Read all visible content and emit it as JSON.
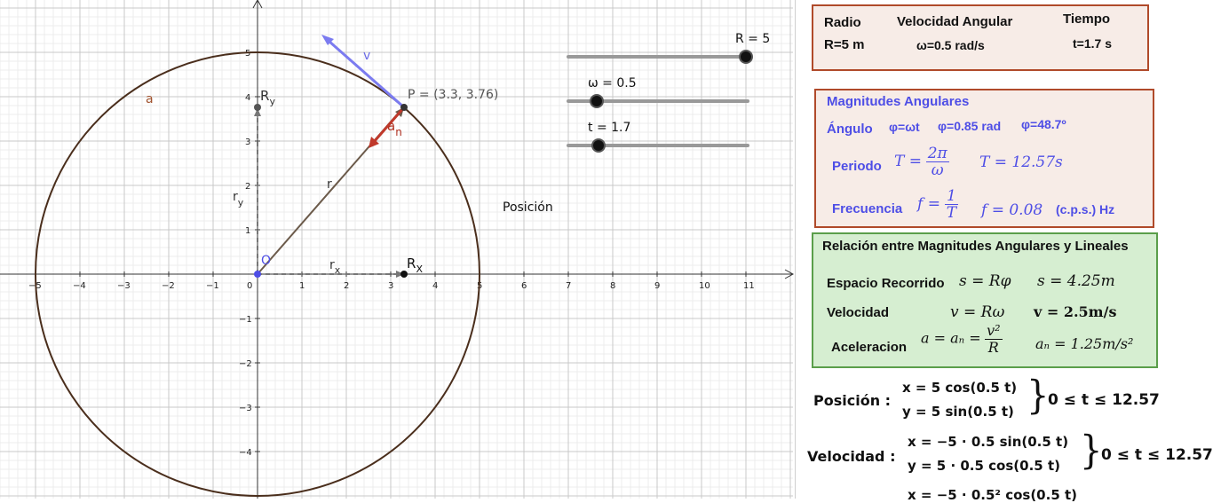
{
  "graph": {
    "label_a": "a",
    "label_O": "O",
    "label_P": "P = (3.3, 3.76)",
    "label_v": "v",
    "label_an_main": "a",
    "label_an_sub": "n",
    "label_r": "r",
    "label_rx_main": "r",
    "label_rx_sub": "x",
    "label_ry_main": "r",
    "label_ry_sub": "y",
    "label_Rx_main": "R",
    "label_Rx_sub": "X",
    "label_Ry_main": "R",
    "label_Ry_sub": "y",
    "label_posicion": "Posición",
    "x_ticks": [
      "−5",
      "−4",
      "−3",
      "−2",
      "−1",
      "0",
      "1",
      "2",
      "3",
      "4",
      "5",
      "6",
      "7",
      "8",
      "9",
      "10",
      "11"
    ],
    "y_ticks": [
      "5",
      "4",
      "3",
      "2",
      "1",
      "−1",
      "−2",
      "−3",
      "−4"
    ],
    "point_P": [
      3.3,
      3.76
    ],
    "radius": 5,
    "colors": {
      "circle": "#4a2e1c",
      "velocity": "#7b7bf0",
      "accel": "#c0392b",
      "radius_vec": "#6b5a4a",
      "point_O": "#4e4ee6"
    }
  },
  "sliders": [
    {
      "label": "R = 5",
      "value": 5,
      "min": 0,
      "max": 5
    },
    {
      "label": "ω = 0.5",
      "value": 0.5,
      "min": 0,
      "max": 2
    },
    {
      "label": "t = 1.7",
      "value": 1.7,
      "min": 0,
      "max": 12.57
    }
  ],
  "params": {
    "h_radio": "Radio",
    "h_vel": "Velocidad Angular",
    "h_tiempo": "Tiempo",
    "v_radio": "R=5 m",
    "v_vel": "ω=0.5 rad/s",
    "v_tiempo": "t=1.7 s"
  },
  "angular": {
    "title": "Magnitudes Angulares",
    "angulo_label": "Ángulo",
    "angulo_formula": "φ=ωt",
    "angulo_rad": "φ=0.85 rad",
    "angulo_deg": "φ=48.7º",
    "periodo_label": "Periodo",
    "periodo_lhs": "T =",
    "periodo_num": "2π",
    "periodo_den": "ω",
    "periodo_value": "T = 12.57s",
    "frecuencia_label": "Frecuencia",
    "frecuencia_lhs": "f =",
    "frecuencia_num": "1",
    "frecuencia_den": "T",
    "frecuencia_value": "f = 0.08",
    "frecuencia_units": "(c.p.s.) Hz"
  },
  "relation": {
    "title": "Relación entre Magnitudes Angulares y Lineales",
    "espacio_label": "Espacio Recorrido",
    "espacio_formula": "s = Rφ",
    "espacio_value": "s = 4.25m",
    "velocidad_label": "Velocidad",
    "velocidad_formula": "v = Rω",
    "velocidad_value": "v = 2.5m/s",
    "acel_label": "Aceleracion",
    "acel_lhs": "a = aₙ =",
    "acel_num": "v²",
    "acel_den": "R",
    "acel_value": "aₙ = 1.25m/s²"
  },
  "equations": {
    "pos_label": "Posición :",
    "pos_x": "x = 5  cos(0.5 t)",
    "pos_y": "y = 5  sin(0.5 t)",
    "pos_range": "0 ≤ t ≤ 12.57",
    "vel_label": "Velocidad :",
    "vel_x": "x = −5 · 0.5  sin(0.5 t)",
    "vel_y": "y = 5 · 0.5  cos(0.5 t)",
    "vel_range": "0 ≤ t ≤ 12.57",
    "acc_x_partial": "x = −5 · 0.5² cos(0.5 t)"
  }
}
